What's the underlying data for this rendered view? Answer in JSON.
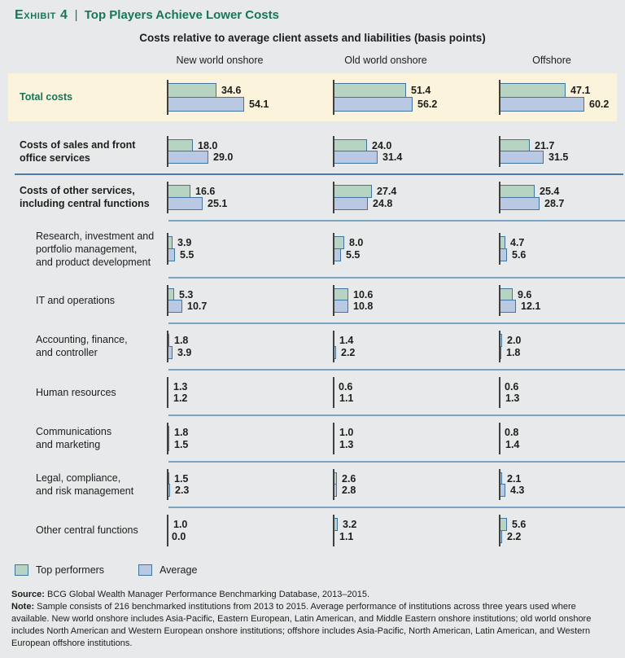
{
  "header": {
    "eyebrow": "Exhibit 4",
    "separator": "|",
    "title": "Top Players Achieve Lower Costs"
  },
  "chart_data": {
    "type": "bar",
    "orientation": "horizontal",
    "title": "Costs relative to average client assets and liabilities (basis points)",
    "unit": "basis points",
    "xlim": [
      0,
      65
    ],
    "grid": false,
    "columns": [
      "New world onshore",
      "Old world onshore",
      "Offshore"
    ],
    "series_names": [
      "Top performers",
      "Average"
    ],
    "rows": [
      {
        "label": "Total costs",
        "lines": [
          "Total costs"
        ],
        "style": "total",
        "divider_after": "none",
        "values": [
          [
            34.6,
            54.1
          ],
          [
            51.4,
            56.2
          ],
          [
            47.1,
            60.2
          ]
        ]
      },
      {
        "label": "Costs of sales and front office services",
        "lines": [
          "Costs of sales and front",
          "office services"
        ],
        "style": "group",
        "divider_after": "full",
        "values": [
          [
            18.0,
            29.0
          ],
          [
            24.0,
            31.4
          ],
          [
            21.7,
            31.5
          ]
        ]
      },
      {
        "label": "Costs of other services, including central functions",
        "lines": [
          "Costs of other services,",
          "including central functions"
        ],
        "style": "group",
        "divider_after": "chart",
        "values": [
          [
            16.6,
            25.1
          ],
          [
            27.4,
            24.8
          ],
          [
            25.4,
            28.7
          ]
        ]
      },
      {
        "label": "Research, investment and portfolio management, and product development",
        "lines": [
          "Research, investment and",
          "portfolio management,",
          "and product development"
        ],
        "style": "sub",
        "divider_after": "chart",
        "values": [
          [
            3.9,
            5.5
          ],
          [
            8.0,
            5.5
          ],
          [
            4.7,
            5.6
          ]
        ]
      },
      {
        "label": "IT and operations",
        "lines": [
          "IT and operations"
        ],
        "style": "sub",
        "divider_after": "chart",
        "values": [
          [
            5.3,
            10.7
          ],
          [
            10.6,
            10.8
          ],
          [
            9.6,
            12.1
          ]
        ]
      },
      {
        "label": "Accounting, finance, and controller",
        "lines": [
          "Accounting, finance,",
          "and controller"
        ],
        "style": "sub",
        "divider_after": "chart",
        "values": [
          [
            1.8,
            3.9
          ],
          [
            1.4,
            2.2
          ],
          [
            2.0,
            1.8
          ]
        ]
      },
      {
        "label": "Human resources",
        "lines": [
          "Human resources"
        ],
        "style": "sub",
        "divider_after": "chart",
        "values": [
          [
            1.3,
            1.2
          ],
          [
            0.6,
            1.1
          ],
          [
            0.6,
            1.3
          ]
        ]
      },
      {
        "label": "Communications and marketing",
        "lines": [
          "Communications",
          "and marketing"
        ],
        "style": "sub",
        "divider_after": "chart",
        "values": [
          [
            1.8,
            1.5
          ],
          [
            1.0,
            1.3
          ],
          [
            0.8,
            1.4
          ]
        ]
      },
      {
        "label": "Legal, compliance, and risk management",
        "lines": [
          "Legal, compliance,",
          "and risk management"
        ],
        "style": "sub",
        "divider_after": "chart",
        "values": [
          [
            1.5,
            2.3
          ],
          [
            2.6,
            2.8
          ],
          [
            2.1,
            4.3
          ]
        ]
      },
      {
        "label": "Other central functions",
        "lines": [
          "Other central functions"
        ],
        "style": "sub",
        "divider_after": "none",
        "values": [
          [
            1.0,
            0.0
          ],
          [
            3.2,
            1.1
          ],
          [
            5.6,
            2.2
          ]
        ]
      }
    ]
  },
  "legend": [
    {
      "label": "Top performers",
      "color": "#b7d3c1"
    },
    {
      "label": "Average",
      "color": "#bac9e3"
    }
  ],
  "footer": {
    "source_label": "Source:",
    "source_text": " BCG Global Wealth Manager Performance Benchmarking Database, 2013–2015.",
    "note_label": "Note:",
    "note_text": " Sample consists of 216 benchmarked institutions from 2013 to 2015. Average performance of institutions across three years used where available. New world onshore includes Asia-Pacific, Eastern European, Latin American, and Middle Eastern onshore institutions; old world onshore includes North American and Western European onshore institutions; offshore includes Asia-Pacific, North American, Latin American, and Western European offshore institutions."
  },
  "colors": {
    "page_bg": "#e8e9eb",
    "text": "#1d1d1b",
    "title_green": "#17765a",
    "top_performers_fill": "#b7d3c1",
    "average_fill": "#bac9e3",
    "bar_border": "#40759f",
    "highlight_bg": "#fcf3dc",
    "divider_major": "#4d7da4",
    "divider_minor": "#79a3c1",
    "axis": "#3f3f3f"
  }
}
